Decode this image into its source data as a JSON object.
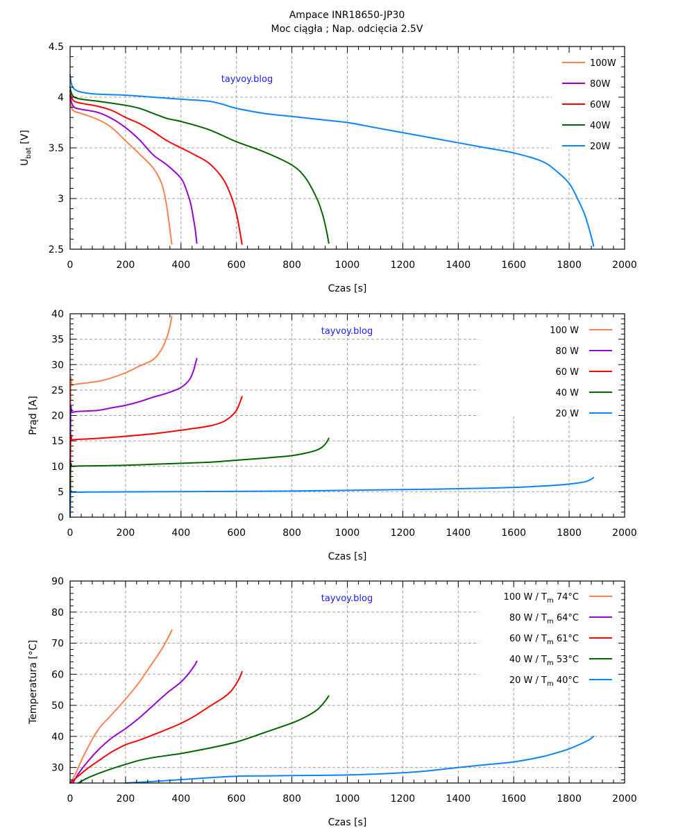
{
  "title": [
    "Ampace INR18650-JP30",
    "Moc ciągła ; Nap. odcięcia 2.5V"
  ],
  "colors": {
    "100W": "#ff8050",
    "80W": "#9400d3",
    "60W": "#ff0000",
    "40W": "#006400",
    "20W": "#0a84ff",
    "watermark": "#1a1aff",
    "grid": "#a0a0a0"
  },
  "chart_data": [
    {
      "type": "line",
      "title": "",
      "xlabel": "Czas [s]",
      "ylabel": "U_bat [V]",
      "xlim": [
        0,
        2000
      ],
      "ylim": [
        2.5,
        4.5
      ],
      "xticks": [
        0,
        200,
        400,
        600,
        800,
        1000,
        1200,
        1400,
        1600,
        1800,
        2000
      ],
      "yticks": [
        2.5,
        3,
        3.5,
        4,
        4.5
      ],
      "ytick_labels": [
        "2.5",
        "3",
        "3.5",
        "4",
        "4.5"
      ],
      "grid": true,
      "legend_position": "top-right",
      "annotation": "tayvoy.blog",
      "series": [
        {
          "name": "100W",
          "legend": "100W",
          "color_key": "100W",
          "x": [
            0,
            5,
            15,
            40,
            100,
            150,
            200,
            250,
            300,
            330,
            345,
            355,
            362,
            367
          ],
          "y": [
            3.98,
            3.9,
            3.86,
            3.84,
            3.78,
            3.7,
            3.57,
            3.44,
            3.3,
            3.15,
            2.98,
            2.8,
            2.65,
            2.55
          ]
        },
        {
          "name": "80W",
          "legend": "80W",
          "color_key": "80W",
          "x": [
            0,
            5,
            15,
            40,
            100,
            150,
            200,
            250,
            300,
            350,
            400,
            420,
            435,
            445,
            452,
            457
          ],
          "y": [
            4.02,
            3.95,
            3.9,
            3.88,
            3.85,
            3.79,
            3.7,
            3.58,
            3.43,
            3.33,
            3.2,
            3.08,
            2.95,
            2.8,
            2.68,
            2.56
          ]
        },
        {
          "name": "60W",
          "legend": "60W",
          "color_key": "60W",
          "x": [
            0,
            5,
            15,
            40,
            100,
            150,
            200,
            250,
            300,
            350,
            400,
            450,
            500,
            550,
            580,
            600,
            612,
            620
          ],
          "y": [
            4.06,
            4.0,
            3.96,
            3.94,
            3.91,
            3.87,
            3.8,
            3.74,
            3.66,
            3.57,
            3.5,
            3.43,
            3.35,
            3.2,
            3.03,
            2.85,
            2.68,
            2.55
          ]
        },
        {
          "name": "40W",
          "legend": "40W",
          "color_key": "40W",
          "x": [
            0,
            5,
            15,
            40,
            100,
            200,
            250,
            300,
            350,
            400,
            500,
            600,
            700,
            800,
            850,
            890,
            910,
            925,
            933
          ],
          "y": [
            4.1,
            4.04,
            4.0,
            3.98,
            3.96,
            3.92,
            3.89,
            3.84,
            3.79,
            3.76,
            3.68,
            3.56,
            3.46,
            3.33,
            3.2,
            3.0,
            2.85,
            2.68,
            2.56
          ]
        },
        {
          "name": "20W",
          "legend": "20W",
          "color_key": "20W",
          "x": [
            0,
            5,
            15,
            40,
            100,
            200,
            300,
            400,
            500,
            550,
            600,
            700,
            800,
            900,
            1000,
            1100,
            1200,
            1300,
            1400,
            1500,
            1600,
            1700,
            1750,
            1800,
            1830,
            1855,
            1870,
            1882,
            1888
          ],
          "y": [
            4.22,
            4.13,
            4.08,
            4.05,
            4.03,
            4.02,
            4.0,
            3.98,
            3.96,
            3.93,
            3.89,
            3.84,
            3.81,
            3.78,
            3.75,
            3.7,
            3.65,
            3.6,
            3.55,
            3.5,
            3.45,
            3.37,
            3.28,
            3.15,
            3.0,
            2.85,
            2.72,
            2.6,
            2.53
          ]
        }
      ]
    },
    {
      "type": "line",
      "title": "",
      "xlabel": "Czas [s]",
      "ylabel": "Prąd [A]",
      "xlim": [
        0,
        2000
      ],
      "ylim": [
        0,
        40
      ],
      "xticks": [
        0,
        200,
        400,
        600,
        800,
        1000,
        1200,
        1400,
        1600,
        1800,
        2000
      ],
      "yticks": [
        0,
        5,
        10,
        15,
        20,
        25,
        30,
        35,
        40
      ],
      "ytick_labels": [
        "0",
        "5",
        "10",
        "15",
        "20",
        "25",
        "30",
        "35",
        "40"
      ],
      "grid": true,
      "legend_position": "top-right",
      "annotation": "tayvoy.blog",
      "series": [
        {
          "name": "100W",
          "legend": "100 W",
          "color_key": "100W",
          "x": [
            0,
            2,
            8,
            30,
            100,
            150,
            200,
            250,
            300,
            330,
            350,
            360,
            365,
            367
          ],
          "y": [
            0,
            25.5,
            26.0,
            26.2,
            26.7,
            27.4,
            28.4,
            29.7,
            31.0,
            33.0,
            35.5,
            37.5,
            39.0,
            39.5
          ]
        },
        {
          "name": "80W",
          "legend": "80 W",
          "color_key": "80W",
          "x": [
            0,
            2,
            8,
            30,
            100,
            150,
            200,
            250,
            300,
            350,
            400,
            430,
            445,
            452,
            457
          ],
          "y": [
            0,
            20.2,
            20.6,
            20.8,
            21.0,
            21.5,
            22.0,
            22.7,
            23.6,
            24.4,
            25.5,
            27.0,
            28.8,
            30.2,
            31.2
          ]
        },
        {
          "name": "60W",
          "legend": "60 W",
          "color_key": "60W",
          "x": [
            0,
            2,
            8,
            30,
            100,
            200,
            300,
            400,
            500,
            550,
            580,
            600,
            612,
            620
          ],
          "y": [
            0,
            15.0,
            15.2,
            15.3,
            15.5,
            15.9,
            16.4,
            17.1,
            17.9,
            18.7,
            19.8,
            21.0,
            22.5,
            23.7
          ]
        },
        {
          "name": "40W",
          "legend": "40 W",
          "color_key": "40W",
          "x": [
            0,
            2,
            8,
            30,
            100,
            200,
            300,
            400,
            500,
            600,
            700,
            800,
            850,
            890,
            910,
            925,
            933
          ],
          "y": [
            0,
            9.8,
            10.0,
            10.05,
            10.1,
            10.2,
            10.4,
            10.6,
            10.8,
            11.2,
            11.6,
            12.1,
            12.6,
            13.2,
            13.8,
            14.7,
            15.5
          ]
        },
        {
          "name": "20W",
          "legend": "20 W",
          "color_key": "20W",
          "x": [
            0,
            2,
            8,
            30,
            100,
            300,
            500,
            700,
            900,
            1100,
            1300,
            1500,
            1600,
            1700,
            1780,
            1830,
            1860,
            1878,
            1888
          ],
          "y": [
            0,
            4.9,
            4.9,
            4.92,
            4.95,
            5.0,
            5.05,
            5.1,
            5.2,
            5.35,
            5.5,
            5.7,
            5.85,
            6.1,
            6.4,
            6.7,
            7.0,
            7.4,
            7.8
          ]
        }
      ]
    },
    {
      "type": "line",
      "title": "",
      "xlabel": "Czas [s]",
      "ylabel": "Temperatura [°C]",
      "xlim": [
        0,
        2000
      ],
      "ylim": [
        25,
        90
      ],
      "xticks": [
        0,
        200,
        400,
        600,
        800,
        1000,
        1200,
        1400,
        1600,
        1800,
        2000
      ],
      "yticks": [
        30,
        40,
        50,
        60,
        70,
        80,
        90
      ],
      "ytick_labels": [
        "30",
        "40",
        "50",
        "60",
        "70",
        "80",
        "90"
      ],
      "grid": true,
      "legend_position": "top-right",
      "annotation": "tayvoy.blog",
      "series": [
        {
          "name": "100W",
          "legend_prefix": "100 W  / T",
          "legend_sub": "m",
          "legend_suffix": " 74°C",
          "color_key": "100W",
          "x": [
            0,
            20,
            50,
            100,
            150,
            200,
            250,
            300,
            330,
            355,
            367
          ],
          "y": [
            25,
            28,
            34,
            42,
            47,
            52,
            57.5,
            64,
            68,
            72,
            74.2
          ]
        },
        {
          "name": "80W",
          "legend_prefix": "80 W  / T",
          "legend_sub": "m",
          "legend_suffix": " 64°C",
          "color_key": "80W",
          "x": [
            10,
            30,
            60,
            100,
            150,
            200,
            250,
            300,
            350,
            400,
            430,
            450,
            457
          ],
          "y": [
            25,
            28,
            31.5,
            35.5,
            39.5,
            42.5,
            46,
            50,
            54,
            57.5,
            60.5,
            63,
            64.2
          ]
        },
        {
          "name": "60W",
          "legend_prefix": "60 W  / T",
          "legend_sub": "m",
          "legend_suffix": " 61°C",
          "color_key": "60W",
          "x": [
            0,
            20,
            60,
            100,
            150,
            200,
            250,
            300,
            350,
            400,
            450,
            500,
            550,
            580,
            600,
            612,
            620
          ],
          "y": [
            25,
            26.5,
            29.5,
            32,
            35,
            37.3,
            38.8,
            40.5,
            42.3,
            44.2,
            46.6,
            49.5,
            52.3,
            54.5,
            57,
            59,
            60.8
          ]
        },
        {
          "name": "40W",
          "legend_prefix": "40 W  / T",
          "legend_sub": "m",
          "legend_suffix": " 53°C",
          "color_key": "40W",
          "x": [
            30,
            60,
            100,
            150,
            200,
            250,
            300,
            400,
            500,
            600,
            700,
            800,
            850,
            890,
            915,
            933
          ],
          "y": [
            25,
            26.5,
            28,
            29.6,
            31,
            32.3,
            33.2,
            34.5,
            36.2,
            38.2,
            41.2,
            44.3,
            46.3,
            48.5,
            50.8,
            53
          ]
        },
        {
          "name": "20W",
          "legend_prefix": "20 W  / T",
          "legend_sub": "m",
          "legend_suffix": " 40°C",
          "color_key": "20W",
          "x": [
            200,
            300,
            400,
            500,
            600,
            700,
            800,
            1000,
            1200,
            1300,
            1400,
            1500,
            1600,
            1700,
            1750,
            1800,
            1840,
            1870,
            1888
          ],
          "y": [
            25,
            25.5,
            26.1,
            26.7,
            27.2,
            27.3,
            27.4,
            27.6,
            28.3,
            29.0,
            30.0,
            30.9,
            31.8,
            33.4,
            34.6,
            36.0,
            37.5,
            38.8,
            40
          ]
        }
      ]
    }
  ]
}
